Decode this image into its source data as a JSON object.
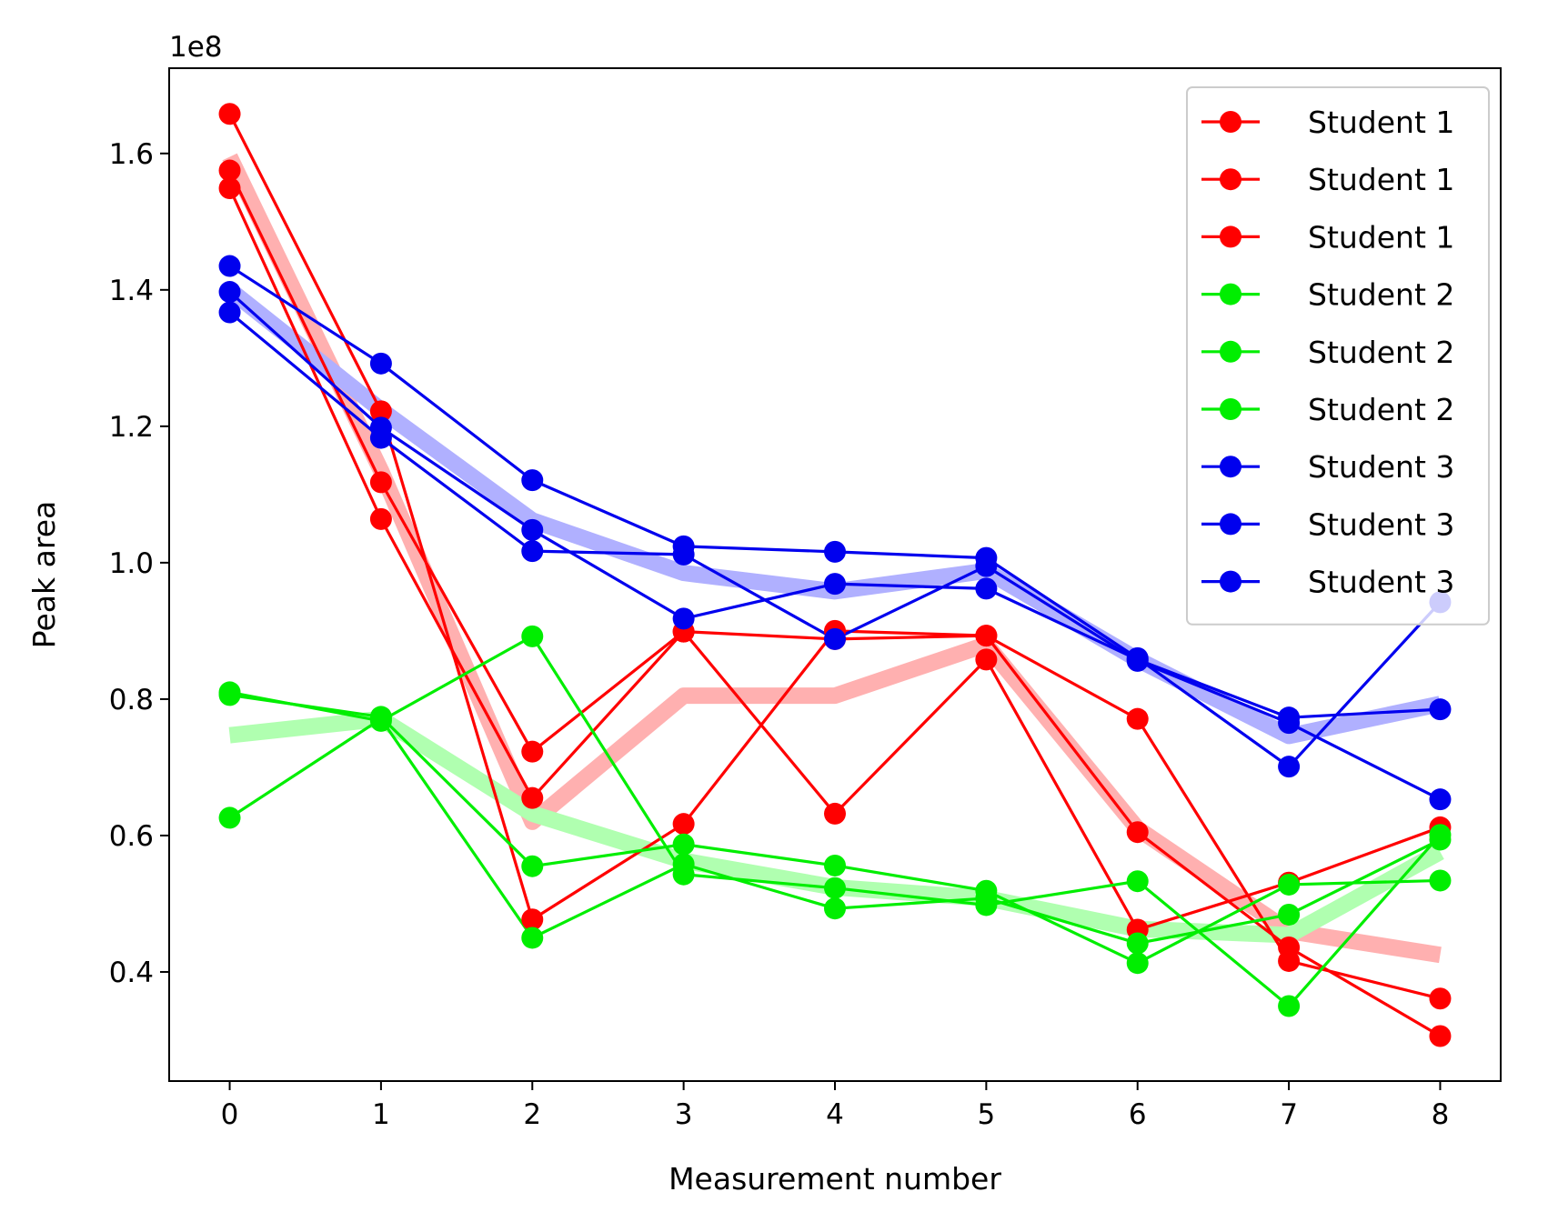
{
  "chart_data": {
    "type": "line",
    "xlabel": "Measurement number",
    "ylabel": "Peak area",
    "y_offset_label": "1e8",
    "x": [
      0,
      1,
      2,
      3,
      4,
      5,
      6,
      7,
      8
    ],
    "xlim": [
      -0.4,
      8.4
    ],
    "ylim": [
      0.24,
      1.725
    ],
    "x_ticks": [
      0,
      1,
      2,
      3,
      4,
      5,
      6,
      7,
      8
    ],
    "x_tick_labels": [
      "0",
      "1",
      "2",
      "3",
      "4",
      "5",
      "6",
      "7",
      "8"
    ],
    "y_ticks": [
      0.4,
      0.6,
      0.8,
      1.0,
      1.2,
      1.4,
      1.6
    ],
    "y_tick_labels": [
      "0.4",
      "0.6",
      "0.8",
      "1.0",
      "1.2",
      "1.4",
      "1.6"
    ],
    "grid": false,
    "legend_position": "top-right",
    "series": [
      {
        "name": "Student 1",
        "color": "#ff0000",
        "values": [
          1.658,
          1.222,
          0.477,
          0.617,
          0.9,
          0.893,
          0.771,
          0.416,
          0.361
        ]
      },
      {
        "name": "Student 1",
        "color": "#ff0000",
        "values": [
          1.575,
          1.118,
          0.723,
          0.899,
          0.632,
          0.858,
          0.462,
          0.531,
          0.612
        ]
      },
      {
        "name": "Student 1",
        "color": "#ff0000",
        "values": [
          1.549,
          1.064,
          0.655,
          0.899,
          0.888,
          0.893,
          0.605,
          0.436,
          0.306
        ]
      },
      {
        "name": "Student 2",
        "color": "#00ee00",
        "values": [
          0.81,
          0.768,
          0.892,
          0.543,
          0.523,
          0.498,
          0.533,
          0.35,
          0.601
        ]
      },
      {
        "name": "Student 2",
        "color": "#00ee00",
        "values": [
          0.806,
          0.774,
          0.555,
          0.587,
          0.556,
          0.519,
          0.413,
          0.528,
          0.534
        ]
      },
      {
        "name": "Student 2",
        "color": "#00ee00",
        "values": [
          0.626,
          0.771,
          0.45,
          0.558,
          0.493,
          0.508,
          0.442,
          0.484,
          0.594
        ]
      },
      {
        "name": "Student 3",
        "color": "#0000ee",
        "values": [
          1.435,
          1.292,
          1.121,
          1.024,
          1.016,
          1.007,
          0.86,
          0.701,
          0.942
        ]
      },
      {
        "name": "Student 3",
        "color": "#0000ee",
        "values": [
          1.397,
          1.198,
          1.048,
          0.918,
          0.969,
          0.962,
          0.858,
          0.773,
          0.785
        ]
      },
      {
        "name": "Student 3",
        "color": "#0000ee",
        "values": [
          1.367,
          1.183,
          1.017,
          1.012,
          0.888,
          0.995,
          0.856,
          0.765,
          0.653
        ]
      }
    ],
    "mean_series": [
      {
        "name": "Student 1",
        "color": "#ffb0b0",
        "values": [
          1.595,
          1.135,
          0.62,
          0.805,
          0.805,
          0.88,
          0.61,
          0.46,
          0.425
        ]
      },
      {
        "name": "Student 2",
        "color": "#b0ffb0",
        "values": [
          0.747,
          0.771,
          0.632,
          0.563,
          0.524,
          0.508,
          0.463,
          0.454,
          0.576
        ]
      },
      {
        "name": "Student 3",
        "color": "#b0b0ff",
        "values": [
          1.4,
          1.224,
          1.062,
          0.985,
          0.958,
          0.988,
          0.858,
          0.746,
          0.793
        ]
      }
    ]
  }
}
